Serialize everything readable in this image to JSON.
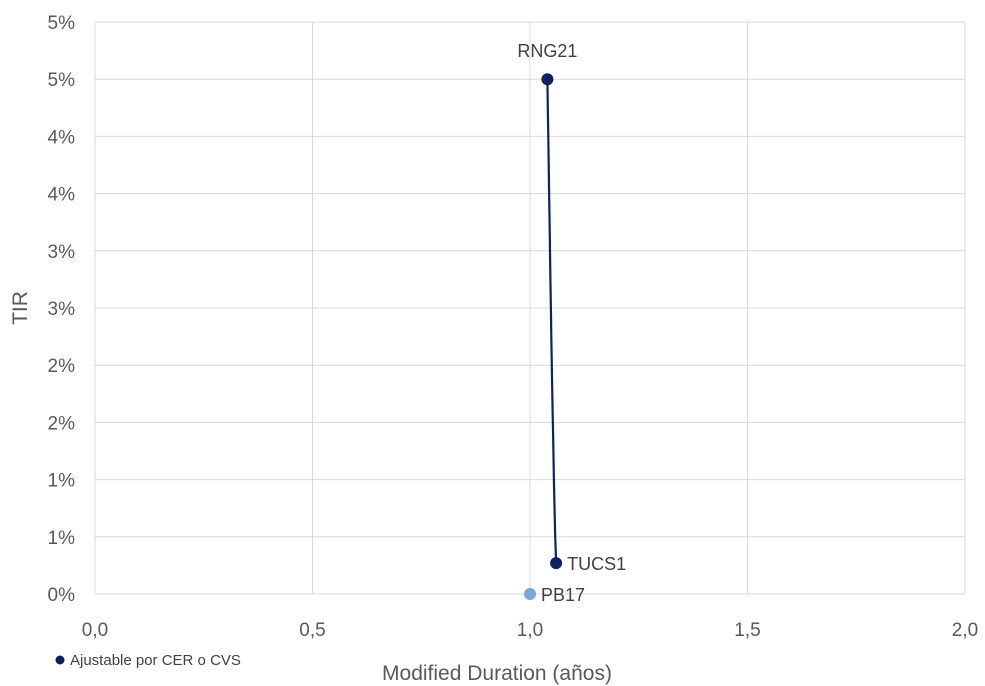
{
  "chart_data": {
    "type": "scatter",
    "title": "",
    "xlabel": "Modified Duration (años)",
    "ylabel": "TIR",
    "xlim": [
      0,
      2
    ],
    "ylim": [
      0,
      0.05
    ],
    "x_ticks": [
      0,
      0.5,
      1.0,
      1.5,
      2.0
    ],
    "x_tick_labels": [
      "0,0",
      "0,5",
      "1,0",
      "1,5",
      "2,0"
    ],
    "y_ticks": [
      0,
      0.005,
      0.01,
      0.015,
      0.02,
      0.025,
      0.03,
      0.035,
      0.04,
      0.045,
      0.05
    ],
    "y_tick_labels": [
      "0%",
      "1%",
      "1%",
      "2%",
      "2%",
      "3%",
      "3%",
      "4%",
      "4%",
      "5%",
      "5%"
    ],
    "grid": true,
    "legend_position": "bottom-left",
    "series": [
      {
        "name": "Ajustable por CER o CVS",
        "color": "#0d2260",
        "points": [
          {
            "label": "RNG21",
            "x": 1.04,
            "y": 0.045
          },
          {
            "label": "TUCS1",
            "x": 1.06,
            "y": 0.0027
          }
        ],
        "trend_line": {
          "x": [
            1.04,
            1.041,
            1.042,
            1.043,
            1.044,
            1.045,
            1.046,
            1.047,
            1.048,
            1.049,
            1.05,
            1.051,
            1.052,
            1.053,
            1.054,
            1.055,
            1.056,
            1.057,
            1.058,
            1.059,
            1.06
          ],
          "y": [
            0.045,
            0.0425,
            0.04,
            0.0375,
            0.035,
            0.0325,
            0.03,
            0.0275,
            0.025,
            0.0225,
            0.02,
            0.018,
            0.016,
            0.014,
            0.012,
            0.01,
            0.008,
            0.0065,
            0.005,
            0.0038,
            0.0027
          ]
        }
      },
      {
        "color": "#7aa6d9",
        "points": [
          {
            "label": "PB17",
            "x": 1.0,
            "y": 0.0
          }
        ]
      }
    ]
  }
}
